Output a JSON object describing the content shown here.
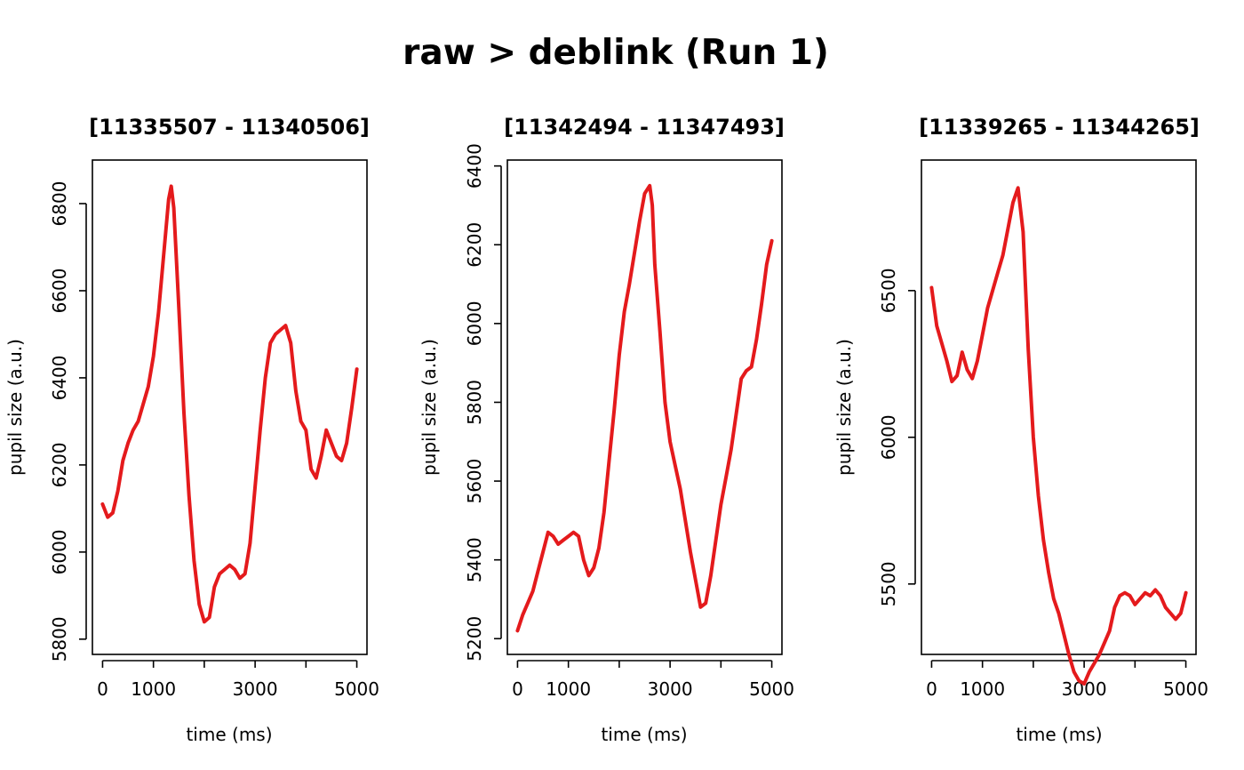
{
  "figure": {
    "title": "raw > deblink (Run 1)"
  },
  "style": {
    "line_color": "#E41A1C"
  },
  "chart_data": [
    {
      "type": "line",
      "title": "[11335507 - 11340506]",
      "xlabel": "time (ms)",
      "ylabel": "pupil size (a.u.)",
      "xlim": [
        -200,
        5200
      ],
      "ylim": [
        5765,
        6900
      ],
      "x_ticks": [
        0,
        1000,
        2000,
        3000,
        4000,
        5000
      ],
      "x_tick_labels": [
        "0",
        "1000",
        "",
        "3000",
        "",
        "5000"
      ],
      "y_ticks": [
        5800,
        6000,
        6200,
        6400,
        6600,
        6800
      ],
      "y_tick_labels": [
        "5800",
        "6000",
        "6200",
        "6400",
        "6600",
        "6800"
      ],
      "grid": false,
      "series": [
        {
          "x": [
            0,
            100,
            200,
            300,
            400,
            500,
            600,
            700,
            800,
            900,
            1000,
            1100,
            1200,
            1300,
            1350,
            1400,
            1500,
            1600,
            1700,
            1800,
            1900,
            2000,
            2100,
            2200,
            2300,
            2400,
            2500,
            2600,
            2700,
            2800,
            2900,
            3000,
            3100,
            3200,
            3300,
            3400,
            3500,
            3600,
            3700,
            3800,
            3900,
            4000,
            4100,
            4200,
            4300,
            4400,
            4500,
            4600,
            4700,
            4800,
            4900,
            5000
          ],
          "y": [
            6110,
            6080,
            6090,
            6140,
            6210,
            6250,
            6280,
            6300,
            6340,
            6380,
            6450,
            6550,
            6680,
            6810,
            6840,
            6790,
            6560,
            6320,
            6130,
            5980,
            5880,
            5840,
            5850,
            5920,
            5950,
            5960,
            5970,
            5960,
            5940,
            5950,
            6020,
            6150,
            6280,
            6400,
            6480,
            6500,
            6510,
            6520,
            6480,
            6370,
            6300,
            6280,
            6190,
            6170,
            6220,
            6280,
            6250,
            6220,
            6210,
            6250,
            6330,
            6420
          ]
        }
      ]
    },
    {
      "type": "line",
      "title": "[11342494 - 11347493]",
      "xlabel": "time (ms)",
      "ylabel": "pupil size (a.u.)",
      "xlim": [
        -200,
        5200
      ],
      "ylim": [
        5160,
        6415
      ],
      "x_ticks": [
        0,
        1000,
        2000,
        3000,
        4000,
        5000
      ],
      "x_tick_labels": [
        "0",
        "1000",
        "",
        "3000",
        "",
        "5000"
      ],
      "y_ticks": [
        5200,
        5400,
        5600,
        5800,
        6000,
        6200,
        6400
      ],
      "y_tick_labels": [
        "5200",
        "5400",
        "5600",
        "5800",
        "6000",
        "6200",
        "6400"
      ],
      "grid": false,
      "series": [
        {
          "x": [
            0,
            100,
            200,
            300,
            400,
            500,
            600,
            700,
            800,
            900,
            1000,
            1100,
            1200,
            1300,
            1400,
            1500,
            1600,
            1700,
            1800,
            1900,
            2000,
            2100,
            2200,
            2300,
            2400,
            2500,
            2600,
            2650,
            2700,
            2800,
            2900,
            3000,
            3100,
            3200,
            3300,
            3400,
            3500,
            3600,
            3700,
            3800,
            3900,
            4000,
            4100,
            4200,
            4300,
            4400,
            4500,
            4600,
            4700,
            4800,
            4900,
            5000
          ],
          "y": [
            5220,
            5260,
            5290,
            5320,
            5370,
            5420,
            5470,
            5460,
            5440,
            5450,
            5460,
            5470,
            5460,
            5400,
            5360,
            5380,
            5430,
            5520,
            5650,
            5780,
            5920,
            6030,
            6100,
            6180,
            6260,
            6330,
            6350,
            6300,
            6150,
            5980,
            5800,
            5700,
            5640,
            5580,
            5500,
            5420,
            5350,
            5280,
            5290,
            5360,
            5450,
            5540,
            5610,
            5680,
            5770,
            5860,
            5880,
            5890,
            5960,
            6050,
            6150,
            6210
          ]
        }
      ]
    },
    {
      "type": "line",
      "title": "[11339265 - 11344265]",
      "xlabel": "time (ms)",
      "ylabel": "pupil size (a.u.)",
      "xlim": [
        -200,
        5200
      ],
      "ylim": [
        5260,
        6945
      ],
      "x_ticks": [
        0,
        1000,
        2000,
        3000,
        4000,
        5000
      ],
      "x_tick_labels": [
        "0",
        "1000",
        "",
        "3000",
        "",
        "5000"
      ],
      "y_ticks": [
        5500,
        6000,
        6500
      ],
      "y_tick_labels": [
        "5500",
        "6000",
        "6500"
      ],
      "grid": false,
      "series": [
        {
          "x": [
            0,
            100,
            200,
            300,
            400,
            500,
            600,
            700,
            800,
            900,
            1000,
            1100,
            1200,
            1300,
            1400,
            1500,
            1600,
            1700,
            1800,
            1900,
            2000,
            2100,
            2200,
            2300,
            2400,
            2500,
            2600,
            2700,
            2800,
            2900,
            3000,
            3100,
            3200,
            3300,
            3400,
            3500,
            3600,
            3700,
            3800,
            3900,
            4000,
            4100,
            4200,
            4300,
            4400,
            4500,
            4600,
            4700,
            4800,
            4900,
            5000
          ],
          "y": [
            6510,
            6380,
            6320,
            6260,
            6190,
            6210,
            6290,
            6230,
            6200,
            6260,
            6350,
            6440,
            6500,
            6560,
            6620,
            6710,
            6800,
            6850,
            6700,
            6300,
            6000,
            5800,
            5650,
            5540,
            5450,
            5400,
            5330,
            5260,
            5200,
            5170,
            5160,
            5200,
            5230,
            5260,
            5300,
            5340,
            5420,
            5460,
            5470,
            5460,
            5430,
            5450,
            5470,
            5460,
            5480,
            5460,
            5420,
            5400,
            5380,
            5400,
            5470
          ]
        }
      ]
    }
  ]
}
